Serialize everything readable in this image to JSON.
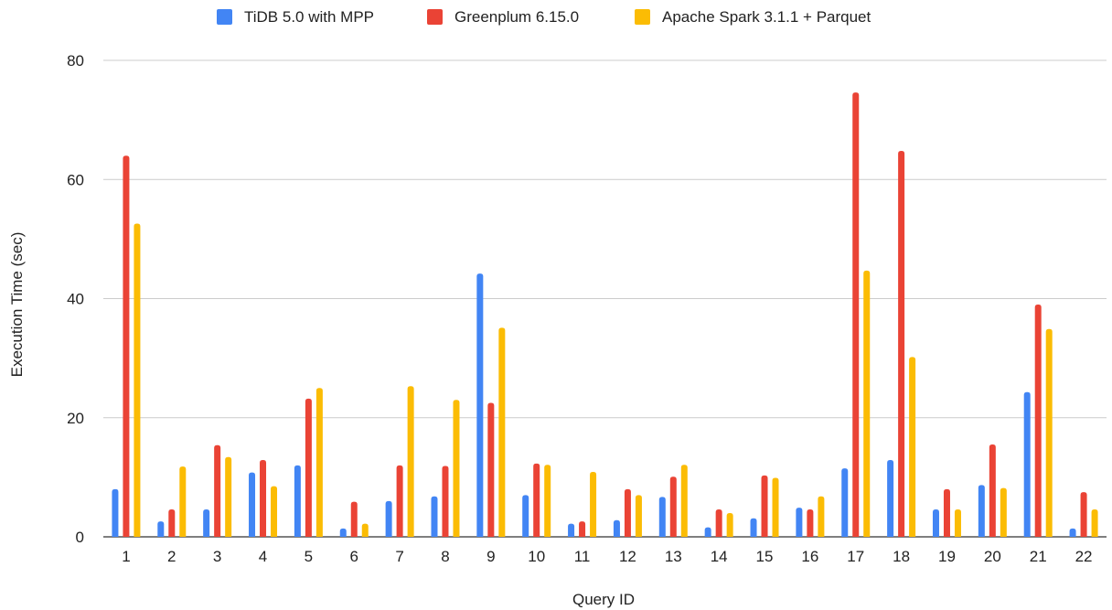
{
  "chart_data": {
    "type": "bar",
    "xlabel": "Query ID",
    "ylabel": "Execution Time (sec)",
    "ylim": [
      0,
      80
    ],
    "yticks": [
      0,
      20,
      40,
      60,
      80
    ],
    "grid": true,
    "legend_position": "top-center",
    "categories": [
      "1",
      "2",
      "3",
      "4",
      "5",
      "6",
      "7",
      "8",
      "9",
      "10",
      "11",
      "12",
      "13",
      "14",
      "15",
      "16",
      "17",
      "18",
      "19",
      "20",
      "21",
      "22"
    ],
    "series": [
      {
        "name": "TiDB 5.0 with MPP",
        "color": "#4285F4",
        "values": [
          8.0,
          2.6,
          4.6,
          10.8,
          12.0,
          1.4,
          6.0,
          6.8,
          44.2,
          7.0,
          2.2,
          2.8,
          6.7,
          1.6,
          3.1,
          4.9,
          11.5,
          12.9,
          4.6,
          8.7,
          24.3,
          1.4
        ]
      },
      {
        "name": "Greenplum 6.15.0",
        "color": "#EA4335",
        "values": [
          64.0,
          4.6,
          15.4,
          12.9,
          23.2,
          5.9,
          12.0,
          11.9,
          22.5,
          12.3,
          2.6,
          8.0,
          10.1,
          4.6,
          10.3,
          4.6,
          74.6,
          64.8,
          8.0,
          15.5,
          39.0,
          7.5
        ]
      },
      {
        "name": "Apache Spark 3.1.1 + Parquet",
        "color": "#FBBC04",
        "values": [
          52.6,
          11.8,
          13.4,
          8.5,
          25.0,
          2.2,
          25.3,
          23.0,
          35.1,
          12.1,
          10.9,
          7.0,
          12.1,
          4.0,
          9.9,
          6.8,
          44.7,
          30.2,
          4.6,
          8.2,
          34.9,
          4.6
        ]
      }
    ]
  }
}
